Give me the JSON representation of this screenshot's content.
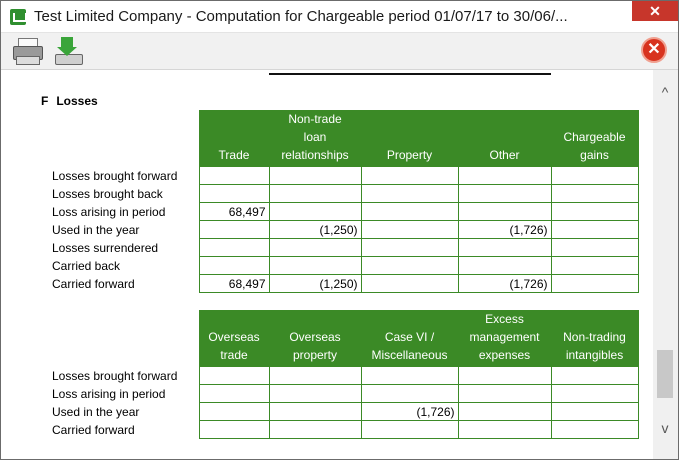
{
  "window": {
    "title": "Test Limited Company - Computation for Chargeable period 01/07/17 to 30/06/...",
    "close_label": "✕"
  },
  "toolbar": {
    "print_icon": "printer-icon",
    "export_icon": "export-download-icon",
    "exit_icon": "exit-x-icon",
    "exit_label": "✕"
  },
  "section": {
    "letter": "F",
    "title": "Losses"
  },
  "table1": {
    "headers": [
      "Trade",
      "Non-trade\nloan\nrelationships",
      "Property",
      "Other",
      "Chargeable\ngains"
    ],
    "rows": [
      {
        "label": "Losses brought forward",
        "cells": [
          "",
          "",
          "",
          "",
          ""
        ]
      },
      {
        "label": "Losses brought back",
        "cells": [
          "",
          "",
          "",
          "",
          ""
        ]
      },
      {
        "label": "Loss arising in period",
        "cells": [
          "68,497",
          "",
          "",
          "",
          ""
        ]
      },
      {
        "label": "Used in the year",
        "cells": [
          "",
          "(1,250)",
          "",
          "(1,726)",
          ""
        ]
      },
      {
        "label": "Losses surrendered",
        "cells": [
          "",
          "",
          "",
          "",
          ""
        ]
      },
      {
        "label": "Carried back",
        "cells": [
          "",
          "",
          "",
          "",
          ""
        ]
      },
      {
        "label": "Carried forward",
        "cells": [
          "68,497",
          "(1,250)",
          "",
          "(1,726)",
          ""
        ]
      }
    ]
  },
  "table2": {
    "headers": [
      "Overseas\ntrade",
      "Overseas\nproperty",
      "Case VI /\nMiscellaneous",
      "Excess\nmanagement\nexpenses",
      "Non-trading\nintangibles"
    ],
    "rows": [
      {
        "label": "Losses brought forward",
        "cells": [
          "",
          "",
          "",
          "",
          ""
        ]
      },
      {
        "label": "Loss arising in period",
        "cells": [
          "",
          "",
          "",
          "",
          ""
        ]
      },
      {
        "label": "Used in the year",
        "cells": [
          "",
          "",
          "(1,726)",
          "",
          ""
        ]
      },
      {
        "label": "Carried forward",
        "cells": [
          "",
          "",
          "",
          "",
          ""
        ]
      }
    ]
  },
  "scrollbar": {
    "up_label": "^",
    "down_label": "v"
  }
}
